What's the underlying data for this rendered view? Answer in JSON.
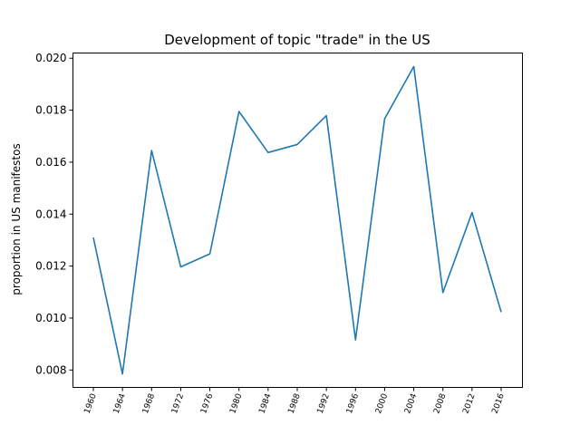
{
  "chart_data": {
    "type": "line",
    "title": "Development of topic \"trade\" in the US",
    "xlabel": "",
    "ylabel": "proportion in US manifestos",
    "categories": [
      "1960",
      "1964",
      "1968",
      "1972",
      "1976",
      "1980",
      "1984",
      "1988",
      "1992",
      "1996",
      "2000",
      "2004",
      "2008",
      "2012",
      "2016"
    ],
    "series": [
      {
        "values": [
          0.0131,
          0.00785,
          0.01645,
          0.01197,
          0.01247,
          0.01795,
          0.01637,
          0.01668,
          0.01779,
          0.00916,
          0.01767,
          0.01968,
          0.01098,
          0.01406,
          0.01023
        ],
        "color": "#1f77b4"
      }
    ],
    "ylim": [
      0.00733,
      0.0202
    ],
    "yticks": [
      "0.008",
      "0.010",
      "0.012",
      "0.014",
      "0.016",
      "0.018",
      "0.020"
    ],
    "grid": false
  }
}
